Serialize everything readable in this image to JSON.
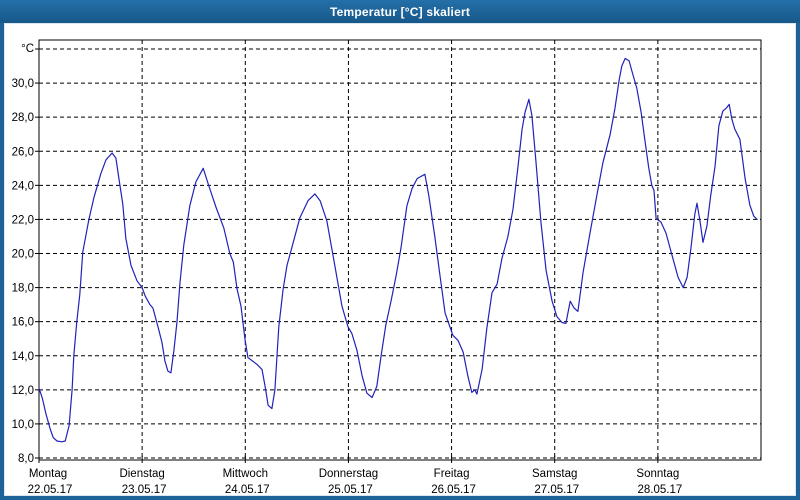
{
  "window": {
    "title": "Temperatur [°C] skaliert"
  },
  "colors": {
    "title_bar": "#1d6398",
    "frame": "#1d6398",
    "line": "#2222bb",
    "grid": "#000000",
    "text": "#000000",
    "plot_background": "#ffffff"
  },
  "chart_data": {
    "type": "line",
    "title": "Temperatur [°C] skaliert",
    "ylabel": "°C",
    "y_axis": {
      "unit_label": "°C",
      "min": 8,
      "max": 32,
      "tick_step": 2,
      "ticks": [
        {
          "value": 30,
          "label": "30,0"
        },
        {
          "value": 28,
          "label": "28,0"
        },
        {
          "value": 26,
          "label": "26,0"
        },
        {
          "value": 24,
          "label": "24,0"
        },
        {
          "value": 22,
          "label": "22,0"
        },
        {
          "value": 20,
          "label": "20,0"
        },
        {
          "value": 18,
          "label": "18,0"
        },
        {
          "value": 16,
          "label": "16,0"
        },
        {
          "value": 14,
          "label": "14,0"
        },
        {
          "value": 12,
          "label": "12,0"
        },
        {
          "value": 10,
          "label": "10,0"
        },
        {
          "value": 8,
          "label": "8,0"
        }
      ],
      "unlabeled_gridline_at": 32,
      "grid": "dashed"
    },
    "x_axis": {
      "hours_total": 168,
      "grid": "dashed",
      "days": [
        {
          "name": "Montag",
          "date": "22.05.17",
          "start_hour": 0
        },
        {
          "name": "Dienstag",
          "date": "23.05.17",
          "start_hour": 24
        },
        {
          "name": "Mittwoch",
          "date": "24.05.17",
          "start_hour": 48
        },
        {
          "name": "Donnerstag",
          "date": "25.05.17",
          "start_hour": 72
        },
        {
          "name": "Freitag",
          "date": "26.05.17",
          "start_hour": 96
        },
        {
          "name": "Samstag",
          "date": "27.05.17",
          "start_hour": 120
        },
        {
          "name": "Sonntag",
          "date": "28.05.17",
          "start_hour": 144
        }
      ]
    },
    "legend": "none",
    "series": [
      {
        "name": "Temperatur",
        "color": "#2222bb",
        "points": [
          [
            0.0,
            12.1
          ],
          [
            0.8,
            11.5
          ],
          [
            1.6,
            10.6
          ],
          [
            2.6,
            9.7
          ],
          [
            3.3,
            9.2
          ],
          [
            4.2,
            9.0
          ],
          [
            5.3,
            8.95
          ],
          [
            6.1,
            9.0
          ],
          [
            7.0,
            9.9
          ],
          [
            7.7,
            12.0
          ],
          [
            8.1,
            14.0
          ],
          [
            8.8,
            16.0
          ],
          [
            9.5,
            17.6
          ],
          [
            10.2,
            20.1
          ],
          [
            11.6,
            22.0
          ],
          [
            12.8,
            23.3
          ],
          [
            14.4,
            24.7
          ],
          [
            15.6,
            25.5
          ],
          [
            17.0,
            25.9
          ],
          [
            17.9,
            25.6
          ],
          [
            18.6,
            24.4
          ],
          [
            19.5,
            22.9
          ],
          [
            20.2,
            20.9
          ],
          [
            21.4,
            19.3
          ],
          [
            22.8,
            18.4
          ],
          [
            24.0,
            18.0
          ],
          [
            24.7,
            17.5
          ],
          [
            25.8,
            17.0
          ],
          [
            26.5,
            16.8
          ],
          [
            27.7,
            15.7
          ],
          [
            28.6,
            14.8
          ],
          [
            29.3,
            13.7
          ],
          [
            30.0,
            13.1
          ],
          [
            30.7,
            13.0
          ],
          [
            31.4,
            14.3
          ],
          [
            32.1,
            16.0
          ],
          [
            32.8,
            18.3
          ],
          [
            33.7,
            20.5
          ],
          [
            35.1,
            22.8
          ],
          [
            36.5,
            24.2
          ],
          [
            38.2,
            25.0
          ],
          [
            39.6,
            23.9
          ],
          [
            41.2,
            22.7
          ],
          [
            43.0,
            21.5
          ],
          [
            44.4,
            20.0
          ],
          [
            45.2,
            19.5
          ],
          [
            46.1,
            17.9
          ],
          [
            47.0,
            16.9
          ],
          [
            47.9,
            15.0
          ],
          [
            48.6,
            13.9
          ],
          [
            50.7,
            13.5
          ],
          [
            51.9,
            13.2
          ],
          [
            52.6,
            12.2
          ],
          [
            53.3,
            11.1
          ],
          [
            54.2,
            10.9
          ],
          [
            54.9,
            12.0
          ],
          [
            55.8,
            15.7
          ],
          [
            56.8,
            17.9
          ],
          [
            57.7,
            19.3
          ],
          [
            58.9,
            20.4
          ],
          [
            60.7,
            22.1
          ],
          [
            62.6,
            23.1
          ],
          [
            64.2,
            23.5
          ],
          [
            65.4,
            23.1
          ],
          [
            67.0,
            21.9
          ],
          [
            68.9,
            19.2
          ],
          [
            70.5,
            16.9
          ],
          [
            71.9,
            15.7
          ],
          [
            72.8,
            15.3
          ],
          [
            74.0,
            14.3
          ],
          [
            75.2,
            12.8
          ],
          [
            76.3,
            11.8
          ],
          [
            77.5,
            11.55
          ],
          [
            78.6,
            12.2
          ],
          [
            79.6,
            14.0
          ],
          [
            80.7,
            15.8
          ],
          [
            81.9,
            17.2
          ],
          [
            83.1,
            18.7
          ],
          [
            84.2,
            20.3
          ],
          [
            85.6,
            22.8
          ],
          [
            86.8,
            23.8
          ],
          [
            88.0,
            24.4
          ],
          [
            89.8,
            24.65
          ],
          [
            90.7,
            23.4
          ],
          [
            92.1,
            21.0
          ],
          [
            93.3,
            18.7
          ],
          [
            94.5,
            16.5
          ],
          [
            95.6,
            15.7
          ],
          [
            96.3,
            15.2
          ],
          [
            97.5,
            14.9
          ],
          [
            98.7,
            14.2
          ],
          [
            99.8,
            12.8
          ],
          [
            100.7,
            11.85
          ],
          [
            101.4,
            12.0
          ],
          [
            101.9,
            11.75
          ],
          [
            103.1,
            13.2
          ],
          [
            104.2,
            15.6
          ],
          [
            105.4,
            17.7
          ],
          [
            106.6,
            18.2
          ],
          [
            107.7,
            19.7
          ],
          [
            109.1,
            21.0
          ],
          [
            110.3,
            22.6
          ],
          [
            111.4,
            25.0
          ],
          [
            112.4,
            27.3
          ],
          [
            113.1,
            28.3
          ],
          [
            114.0,
            29.05
          ],
          [
            114.7,
            28.1
          ],
          [
            115.6,
            25.5
          ],
          [
            116.8,
            21.8
          ],
          [
            118.0,
            19.0
          ],
          [
            119.4,
            17.2
          ],
          [
            120.5,
            16.3
          ],
          [
            121.7,
            15.95
          ],
          [
            122.6,
            15.9
          ],
          [
            123.6,
            17.2
          ],
          [
            124.5,
            16.8
          ],
          [
            125.4,
            16.6
          ],
          [
            126.6,
            18.9
          ],
          [
            128.2,
            21.2
          ],
          [
            129.8,
            23.4
          ],
          [
            131.2,
            25.3
          ],
          [
            132.9,
            27.0
          ],
          [
            134.0,
            28.5
          ],
          [
            135.0,
            30.2
          ],
          [
            135.6,
            31.0
          ],
          [
            136.4,
            31.45
          ],
          [
            137.3,
            31.3
          ],
          [
            138.2,
            30.5
          ],
          [
            139.1,
            29.7
          ],
          [
            140.1,
            28.3
          ],
          [
            141.0,
            26.6
          ],
          [
            141.9,
            25.0
          ],
          [
            142.6,
            24.0
          ],
          [
            143.1,
            23.7
          ],
          [
            143.6,
            22.05
          ],
          [
            144.7,
            21.85
          ],
          [
            145.9,
            21.2
          ],
          [
            147.3,
            19.9
          ],
          [
            148.7,
            18.6
          ],
          [
            149.9,
            18.0
          ],
          [
            150.8,
            18.6
          ],
          [
            151.7,
            20.3
          ],
          [
            152.6,
            22.3
          ],
          [
            153.1,
            22.95
          ],
          [
            153.8,
            21.9
          ],
          [
            154.5,
            20.65
          ],
          [
            155.4,
            21.6
          ],
          [
            156.3,
            23.4
          ],
          [
            157.3,
            25.1
          ],
          [
            158.2,
            27.5
          ],
          [
            159.1,
            28.35
          ],
          [
            160.0,
            28.55
          ],
          [
            160.6,
            28.75
          ],
          [
            161.2,
            27.9
          ],
          [
            161.9,
            27.3
          ],
          [
            163.1,
            26.7
          ],
          [
            164.3,
            24.4
          ],
          [
            165.4,
            22.85
          ],
          [
            166.3,
            22.2
          ],
          [
            167.1,
            22.0
          ]
        ]
      }
    ]
  }
}
